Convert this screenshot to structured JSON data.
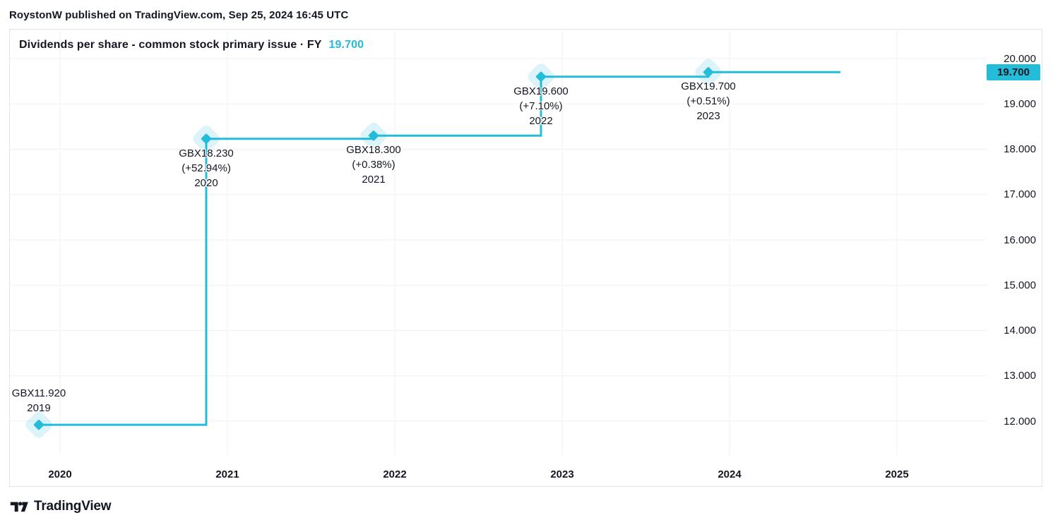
{
  "attribution": "RoystonW published on TradingView.com, Sep 25, 2024 16:45 UTC",
  "footer": {
    "brand": "TradingView"
  },
  "colors": {
    "accent": "#23bcd9",
    "halo": "rgba(35,188,217,0.16)",
    "text": "#131722",
    "grid": "#eef1f7",
    "border": "#e0e3eb",
    "badge_bg": "#23bcd9"
  },
  "chart_data": {
    "type": "line",
    "line_style": "step",
    "title": "Dividends per share - common stock primary issue · FY",
    "last_value": "19.700",
    "unit": "GBX",
    "grid": true,
    "legend_position": "top-left",
    "x": [
      2019,
      2020,
      2021,
      2022,
      2023
    ],
    "series": [
      {
        "name": "Dividends per share - common stock primary issue (FY)",
        "values": [
          11.92,
          18.23,
          18.3,
          19.6,
          19.7
        ]
      }
    ],
    "point_labels": [
      {
        "value_label": "GBX11.920",
        "pct_change": null,
        "year": "2019",
        "label_position": "above"
      },
      {
        "value_label": "GBX18.230",
        "pct_change": "(+52.94%)",
        "year": "2020",
        "label_position": "below"
      },
      {
        "value_label": "GBX18.300",
        "pct_change": "(+0.38%)",
        "year": "2021",
        "label_position": "below"
      },
      {
        "value_label": "GBX19.600",
        "pct_change": "(+7.10%)",
        "year": "2022",
        "label_position": "below"
      },
      {
        "value_label": "GBX19.700",
        "pct_change": "(+0.51%)",
        "year": "2023",
        "label_position": "below"
      }
    ],
    "y_axis": {
      "ticks": [
        "20.000",
        "19.000",
        "18.000",
        "17.000",
        "16.000",
        "15.000",
        "14.000",
        "13.000",
        "12.000"
      ],
      "ylim": [
        11.35,
        20.65
      ]
    },
    "x_axis": {
      "ticks": [
        "2020",
        "2021",
        "2022",
        "2023",
        "2024",
        "2025"
      ]
    }
  }
}
